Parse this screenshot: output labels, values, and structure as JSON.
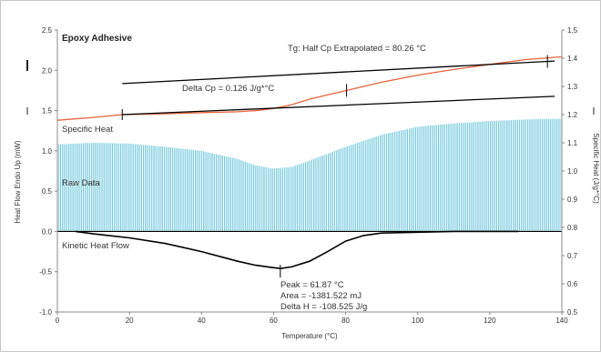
{
  "chart_data": {
    "type": "line",
    "title": "Epoxy Adhesive",
    "xlabel": "Temperature (°C)",
    "ylabel_left": "Heat Flow Endo Up (mW)",
    "ylabel_right": "Specific Heat (J/g*°C)",
    "xlim": [
      0,
      140
    ],
    "ylim_left": [
      -1.0,
      2.5
    ],
    "ylim_right": [
      0.5,
      1.5
    ],
    "x_ticks": [
      "0",
      "20",
      "40",
      "60",
      "80",
      "100",
      "120",
      "140"
    ],
    "y_ticks_left": [
      "2.5",
      "2.0",
      "1.5",
      "1.0",
      "0.5",
      "0.0",
      "-0.5",
      "-1.0"
    ],
    "y_ticks_right": [
      "1.5",
      "1.4",
      "1.3",
      "1.2",
      "1.1",
      "1.0",
      "0.9",
      "0.8",
      "0.7",
      "0.6",
      "0.5"
    ],
    "grid": false,
    "colors": {
      "specific_heat": "#e8633a",
      "raw_data": "#5bbfd6",
      "kinetic": "#000000",
      "tangent": "#000000"
    },
    "labels": {
      "specific_heat": "Specific Heat",
      "raw_data": "Raw Data",
      "kinetic": "Kinetic Heat Flow"
    },
    "annotations": {
      "tg": "Tg: Half Cp Extrapolated = 80.26 °C",
      "delta_cp": "Delta Cp = 0.126 J/g*°C",
      "peak": "Peak = 61.87 °C",
      "area": "Area = -1381.522 mJ",
      "delta_h": "Delta H = -108.525 J/g"
    },
    "series": [
      {
        "name": "Specific Heat",
        "axis": "right",
        "x": [
          0,
          10,
          18,
          30,
          40,
          50,
          56,
          60,
          65,
          70,
          75,
          80,
          85,
          90,
          100,
          110,
          120,
          130,
          135,
          140
        ],
        "y": [
          1.18,
          1.19,
          1.2,
          1.203,
          1.207,
          1.21,
          1.215,
          1.222,
          1.235,
          1.255,
          1.27,
          1.285,
          1.3,
          1.315,
          1.34,
          1.36,
          1.378,
          1.395,
          1.4,
          1.405
        ]
      },
      {
        "name": "Raw Data",
        "axis": "left",
        "x": [
          0,
          10,
          20,
          30,
          40,
          50,
          55,
          60,
          65,
          70,
          80,
          90,
          100,
          110,
          120,
          130,
          140
        ],
        "y": [
          1.08,
          1.1,
          1.09,
          1.05,
          1.0,
          0.9,
          0.82,
          0.78,
          0.8,
          0.88,
          1.05,
          1.2,
          1.3,
          1.34,
          1.37,
          1.39,
          1.4
        ]
      },
      {
        "name": "Kinetic Heat Flow",
        "axis": "left",
        "x": [
          5,
          10,
          20,
          30,
          40,
          50,
          55,
          60,
          62,
          65,
          70,
          75,
          80,
          85,
          90,
          100,
          110,
          120,
          128
        ],
        "y": [
          0.0,
          -0.03,
          -0.08,
          -0.15,
          -0.25,
          -0.37,
          -0.42,
          -0.45,
          -0.46,
          -0.44,
          -0.37,
          -0.25,
          -0.12,
          -0.05,
          -0.02,
          -0.01,
          0.0,
          0.0,
          0.0
        ]
      }
    ],
    "tangent_lines": [
      {
        "name": "upper-tangent",
        "axis": "right",
        "x": [
          18,
          138
        ],
        "y": [
          1.31,
          1.39
        ]
      },
      {
        "name": "lower-tangent",
        "axis": "right",
        "x": [
          18,
          138
        ],
        "y": [
          1.2,
          1.265
        ]
      }
    ],
    "markers": {
      "tg_x": 80.26,
      "peak_x": 61.87
    }
  }
}
